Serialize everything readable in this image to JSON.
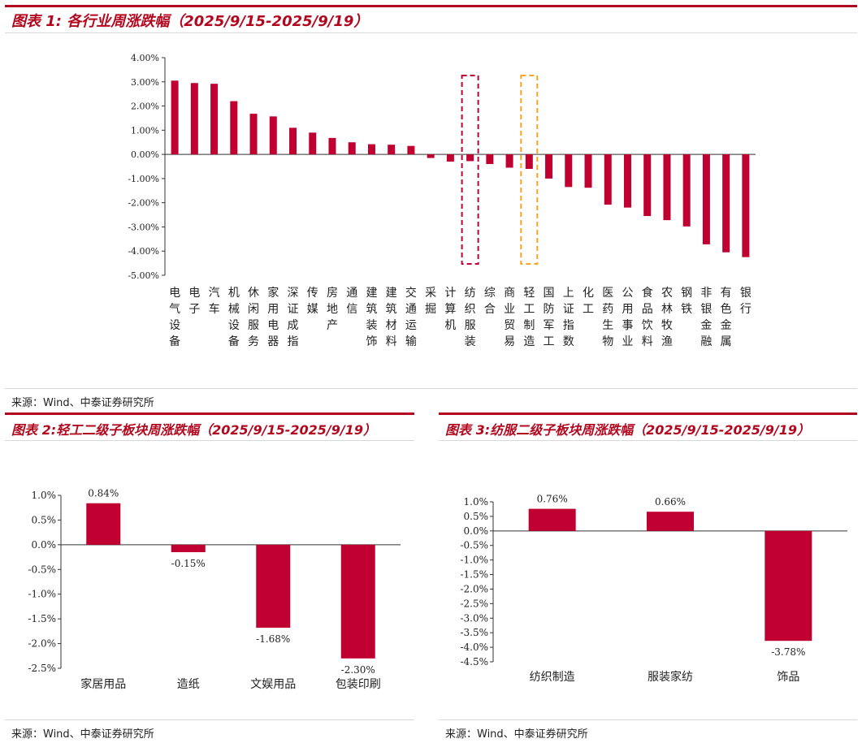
{
  "panels": {
    "p1": {
      "title": "图表 1:  各行业周涨跌幅（2025/9/15-2025/9/19）",
      "source": "来源：Wind、中泰证券研究所"
    },
    "p2": {
      "title": "图表 2:轻工二级子板块周涨跌幅（2025/9/15-2025/9/19）",
      "source": "来源：Wind、中泰证券研究所"
    },
    "p3": {
      "title": "图表 3:纺服二级子板块周涨跌幅（2025/9/15-2025/9/19）",
      "source": "来源：Wind、中泰证券研究所"
    }
  },
  "colors": {
    "bar": "#c00030",
    "accent": "#b2081f",
    "highlight_red": "#c00030",
    "highlight_orange": "#f5a623"
  },
  "chart_data": [
    {
      "type": "bar",
      "title": "图表 1:  各行业周涨跌幅（2025/9/15-2025/9/19）",
      "categories": [
        "电气设备",
        "电子",
        "汽车",
        "机械设备",
        "休闲服务",
        "家用电器",
        "深证成指",
        "传媒",
        "房地产",
        "通信",
        "建筑装饰",
        "建筑材料",
        "交通运输",
        "采掘",
        "计算机",
        "纺织服装",
        "综合",
        "商业贸易",
        "轻工制造",
        "国防军工",
        "上证指数",
        "化工",
        "医药生物",
        "公用事业",
        "食品饮料",
        "农林牧渔",
        "钢铁",
        "非银金融",
        "有色金属",
        "银行"
      ],
      "values": [
        3.05,
        2.95,
        2.92,
        2.2,
        1.68,
        1.57,
        1.1,
        0.9,
        0.68,
        0.5,
        0.42,
        0.4,
        0.35,
        -0.15,
        -0.3,
        -0.28,
        -0.4,
        -0.55,
        -0.6,
        -1.0,
        -1.35,
        -1.38,
        -2.08,
        -2.2,
        -2.55,
        -2.72,
        -2.98,
        -3.72,
        -4.05,
        -4.25
      ],
      "unit": "%",
      "ylim": [
        -5,
        4
      ],
      "yticks": [
        "4.00%",
        "3.00%",
        "2.00%",
        "1.00%",
        "0.00%",
        "-1.00%",
        "-2.00%",
        "-3.00%",
        "-4.00%",
        "-5.00%"
      ],
      "highlights": [
        {
          "category": "纺织服装",
          "color": "#c00030"
        },
        {
          "category": "轻工制造",
          "color": "#f5a623"
        }
      ]
    },
    {
      "type": "bar",
      "title": "图表 2:轻工二级子板块周涨跌幅（2025/9/15-2025/9/19）",
      "categories": [
        "家居用品",
        "造纸",
        "文娱用品",
        "包装印刷"
      ],
      "values": [
        0.84,
        -0.15,
        -1.68,
        -2.3
      ],
      "data_labels": [
        "0.84%",
        "-0.15%",
        "-1.68%",
        "-2.30%"
      ],
      "ylim": [
        -2.5,
        1.0
      ],
      "yticks": [
        "1.0%",
        "0.5%",
        "0.0%",
        "-0.5%",
        "-1.0%",
        "-1.5%",
        "-2.0%",
        "-2.5%"
      ]
    },
    {
      "type": "bar",
      "title": "图表 3:纺服二级子板块周涨跌幅（2025/9/15-2025/9/19）",
      "categories": [
        "纺织制造",
        "服装家纺",
        "饰品"
      ],
      "values": [
        0.76,
        0.66,
        -3.78
      ],
      "data_labels": [
        "0.76%",
        "0.66%",
        "-3.78%"
      ],
      "ylim": [
        -4.5,
        1.0
      ],
      "yticks": [
        "1.0%",
        "0.5%",
        "0.0%",
        "-0.5%",
        "-1.0%",
        "-1.5%",
        "-2.0%",
        "-2.5%",
        "-3.0%",
        "-3.5%",
        "-4.0%",
        "-4.5%"
      ]
    }
  ]
}
